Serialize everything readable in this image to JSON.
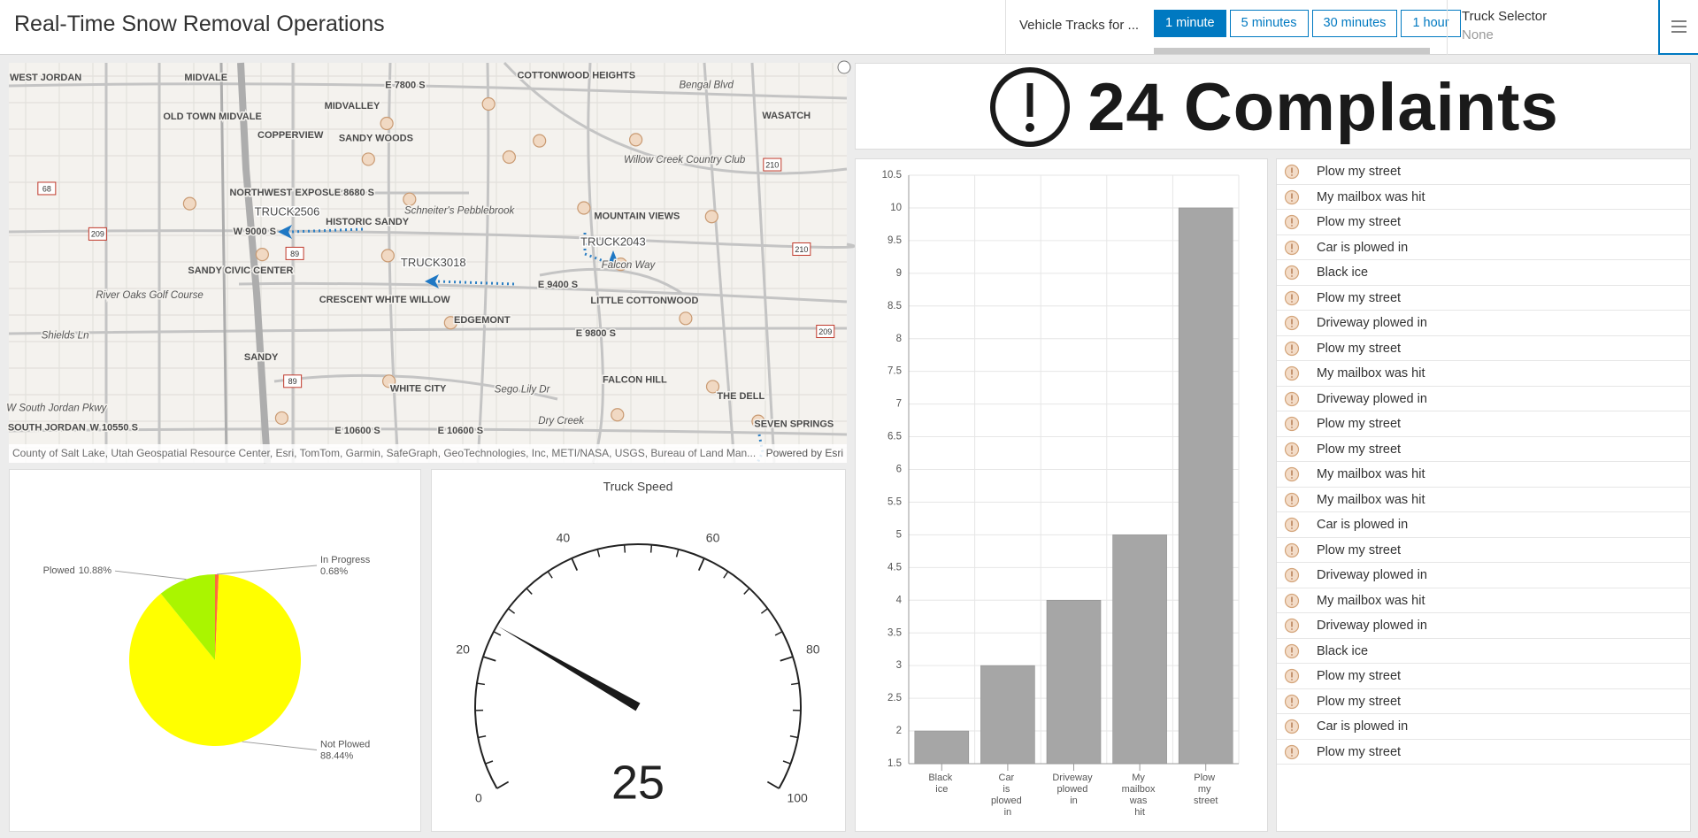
{
  "header": {
    "title": "Real-Time Snow Removal Operations",
    "tracks_label": "Vehicle Tracks for ...",
    "track_options": [
      "1 minute",
      "5 minutes",
      "30 minutes",
      "1 hour"
    ]
  },
  "truck_selector": {
    "label": "Truck Selector",
    "placeholder": "None"
  },
  "map": {
    "labels": [
      "WEST JORDAN",
      "MIDVALE",
      "COTTONWOOD HEIGHTS",
      "Bengal Blvd",
      "WASATCH",
      "E 7800 S",
      "MIDVALLEY",
      "OLD TOWN MIDVALE",
      "COPPERVIEW",
      "SANDY WOODS",
      "Willow Creek Country Club",
      "NORTHWEST EXPOSURE",
      "E 8680 S",
      "HISTORIC SANDY",
      "Schneiter's Pebblebrook",
      "MOUNTAIN VIEWS",
      "W 9000 S",
      "SANDY CIVIC CENTER",
      "Falcon Way",
      "E 9400 S",
      "LITTLE COTTONWOOD",
      "River Oaks Golf Course",
      "CRESCENT WHITE WILLOW",
      "EDGEMONT",
      "E 9800 S",
      "Shields Ln",
      "SANDY",
      "FALCON HILL",
      "WHITE CITY",
      "Sego Lily Dr",
      "THE DELL",
      "W South Jordan Pkwy",
      "Dry Creek",
      "SOUTH JORDAN",
      "SEVEN SPRINGS",
      "W 10550 S",
      "E 10600 S",
      "E 10600 S"
    ],
    "trucks": [
      "TRUCK2506",
      "TRUCK3018",
      "TRUCK2043"
    ],
    "shields": [
      "68",
      "209",
      "89",
      "210",
      "210",
      "209",
      "89"
    ],
    "attribution": "County of Salt Lake, Utah Geospatial Resource Center, Esri, TomTom, Garmin, SafeGraph, GeoTechnologies, Inc, METI/NASA, USGS, Bureau of Land Man...",
    "powered_by": "Powered by Esri"
  },
  "indicator": {
    "value": 24,
    "label": "Complaints"
  },
  "complaints": [
    "Plow my street",
    "My mailbox was hit",
    "Plow my street",
    "Car is plowed in",
    "Black ice",
    "Plow my street",
    "Driveway plowed in",
    "Plow my street",
    "My mailbox was hit",
    "Driveway plowed in",
    "Plow my street",
    "Plow my street",
    "My mailbox was hit",
    "My mailbox was hit",
    "Car is plowed in",
    "Plow my street",
    "Driveway plowed in",
    "My mailbox was hit",
    "Driveway plowed in",
    "Black ice",
    "Plow my street",
    "Plow my street",
    "Car is plowed in",
    "Plow my street"
  ],
  "chart_data": [
    {
      "type": "pie",
      "categories": [
        "In Progress",
        "Not Plowed",
        "Plowed"
      ],
      "values": [
        0.68,
        88.44,
        10.88
      ],
      "value_labels": [
        "0.68%",
        "88.44%",
        "10.88%"
      ],
      "colors": [
        "#ff6a3d",
        "#ffff00",
        "#aaf500"
      ]
    },
    {
      "type": "gauge",
      "title": "Truck Speed",
      "value": 25,
      "ylim": [
        0,
        100
      ],
      "yticks": [
        0,
        20,
        40,
        60,
        80,
        100
      ],
      "minor_ticks": [
        4,
        8,
        12,
        16,
        24,
        28,
        32,
        36,
        44,
        48,
        52,
        56,
        64,
        68,
        72,
        76,
        84,
        88,
        92,
        96
      ],
      "color": "#1a1a1a"
    },
    {
      "type": "bar",
      "categories": [
        "Black ice",
        "Car is plowed in",
        "Driveway plowed in",
        "My mailbox was hit",
        "Plow my street"
      ],
      "values": [
        2,
        3,
        4,
        5,
        10
      ],
      "color": "#a6a6a6",
      "ylim": [
        1.5,
        10.5
      ],
      "yticks": [
        1.5,
        2,
        2.5,
        3,
        3.5,
        4,
        4.5,
        5,
        5.5,
        6,
        6.5,
        7,
        7.5,
        8,
        8.5,
        9,
        9.5,
        10,
        10.5
      ],
      "grid": true
    }
  ]
}
